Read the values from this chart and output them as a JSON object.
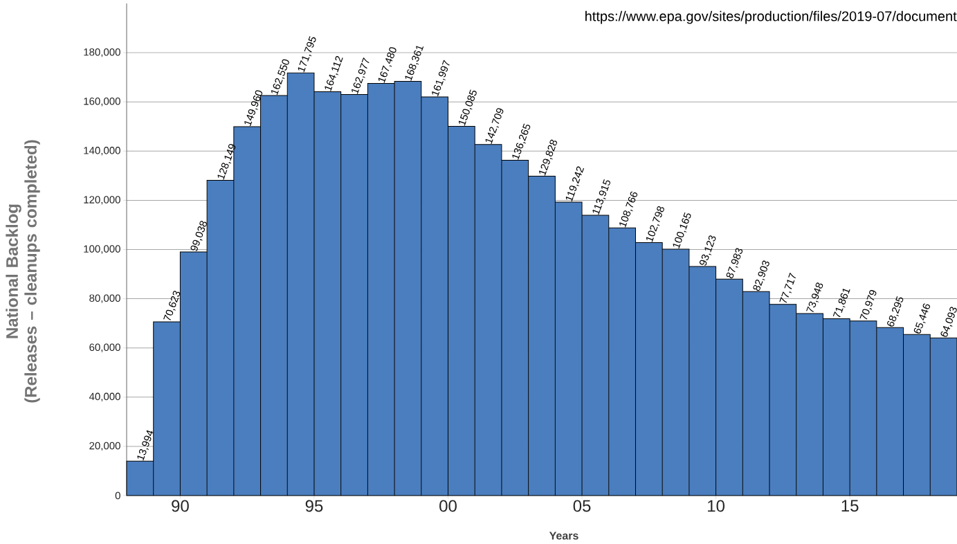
{
  "chart_data": {
    "type": "histogram",
    "xlabel": "Years",
    "ylabel": "National Backlog (Releases – cleanups completed)",
    "bins": [
      1988,
      1989,
      1990,
      1991,
      1992,
      1993,
      1994,
      1995,
      1996,
      1997,
      1998,
      1999,
      2000,
      2001,
      2002,
      2003,
      2004,
      2005,
      2006,
      2007,
      2008,
      2009,
      2010,
      2011,
      2012,
      2013,
      2014,
      2015,
      2016,
      2017,
      2018,
      2019
    ],
    "values": [
      13994,
      70623,
      99038,
      128149,
      149960,
      162550,
      171795,
      164112,
      162977,
      167480,
      168361,
      161997,
      150085,
      142709,
      136265,
      129828,
      119242,
      113915,
      108766,
      102798,
      100165,
      93123,
      87983,
      82903,
      77717,
      73948,
      71861,
      70979,
      68295,
      65446,
      64093
    ],
    "value_labels": [
      "13,994",
      "70,623",
      "99,038",
      "128,149",
      "149,960",
      "162,550",
      "171,795",
      "164,112",
      "162,977",
      "167,480",
      "168,361",
      "161,997",
      "150,085",
      "142,709",
      "136,265",
      "129,828",
      "119,242",
      "113,915",
      "108,766",
      "102,798",
      "100,165",
      "93,123",
      "87,983",
      "82,903",
      "77,717",
      "73,948",
      "71,861",
      "70,979",
      "68,295",
      "65,446",
      "64,093"
    ],
    "color": "#4a7ebf",
    "xlim": [
      1988,
      2019
    ],
    "ylim": [
      0,
      200000
    ],
    "xticks": [
      {
        "value": 1990,
        "label": "90"
      },
      {
        "value": 1995,
        "label": "95"
      },
      {
        "value": 2000,
        "label": "00"
      },
      {
        "value": 2005,
        "label": "05"
      },
      {
        "value": 2010,
        "label": "10"
      },
      {
        "value": 2015,
        "label": "15"
      }
    ],
    "yticks": [
      {
        "value": 0,
        "label": "0"
      },
      {
        "value": 20000,
        "label": "20,000"
      },
      {
        "value": 40000,
        "label": "40,000"
      },
      {
        "value": 60000,
        "label": "60,000"
      },
      {
        "value": 80000,
        "label": "80,000"
      },
      {
        "value": 100000,
        "label": "100,000"
      },
      {
        "value": 120000,
        "label": "120,000"
      },
      {
        "value": 140000,
        "label": "140,000"
      },
      {
        "value": 160000,
        "label": "160,000"
      },
      {
        "value": 180000,
        "label": "180,000"
      }
    ],
    "grid": "y",
    "annotations": [
      "https://www.epa.gov/sites/production/files/2019-07/document"
    ]
  }
}
